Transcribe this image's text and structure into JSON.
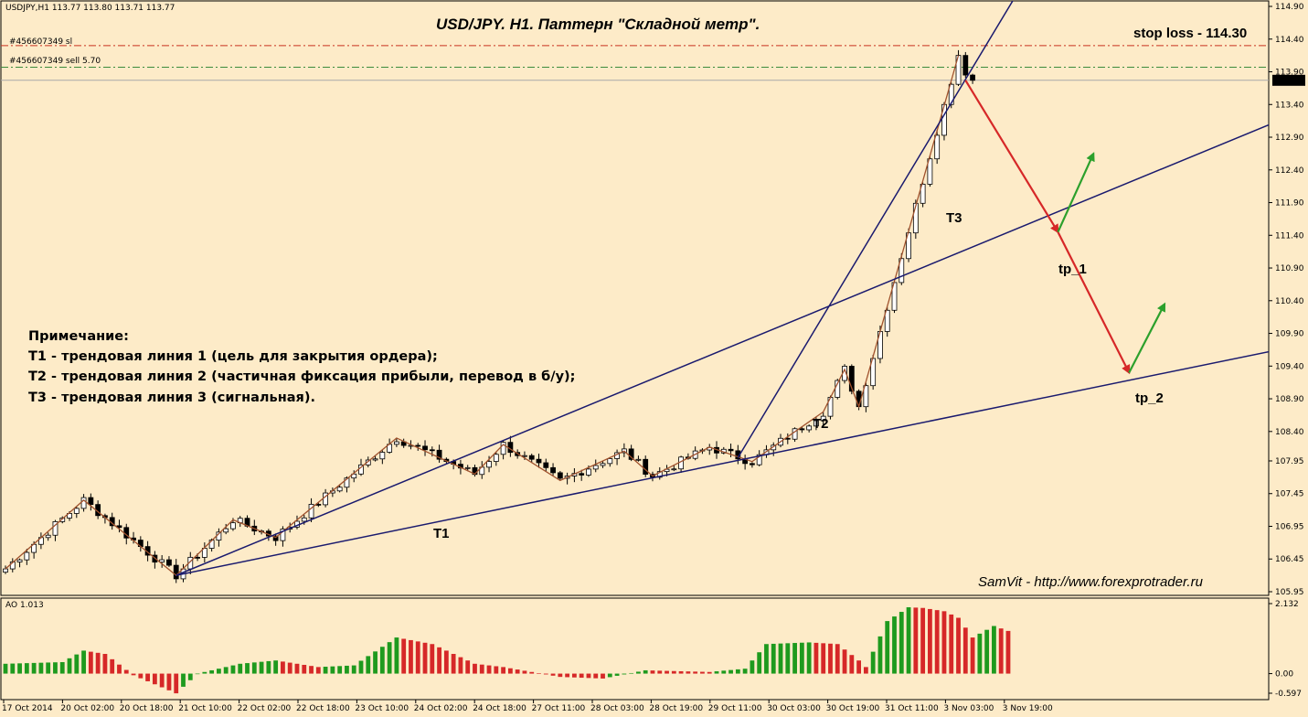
{
  "header": {
    "symbol_info": "USDJPY,H1  113.77 113.80 113.71 113.77",
    "indicator_label": "AO 1.013"
  },
  "orders": {
    "sl_label": "#456607349 sl",
    "sell_label": "#456607349 sell 5.70"
  },
  "annotations": {
    "title": "USD/JPY. H1. Паттерн \"Складной метр\".",
    "stop_loss": "stop loss - 114.30",
    "t1": "T1",
    "t2": "T2",
    "t3": "T3",
    "tp1": "tp_1",
    "tp2": "tp_2",
    "watermark": "SamVit - http://www.forexprotrader.ru",
    "note_lines": [
      "Примечание:",
      "Т1 - трендовая линия 1 (цель для закрытия ордера);",
      "Т2 - трендовая линия 2 (частичная фиксация прибыли, перевод в б/у);",
      "Т3 - трендовая линия 3 (сигнальная)."
    ]
  },
  "chart_data": [
    {
      "type": "candlestick",
      "symbol": "USDJPY",
      "timeframe": "H1",
      "ylim": [
        105.7,
        115.05
      ],
      "price_ticks": [
        "114.90",
        "114.40",
        "113.90",
        "113.40",
        "112.90",
        "112.40",
        "111.90",
        "111.40",
        "110.90",
        "110.40",
        "109.90",
        "109.40",
        "108.90",
        "108.40",
        "107.95",
        "107.45",
        "106.95",
        "106.45",
        "105.95"
      ],
      "time_labels": [
        "17 Oct 2014",
        "20 Oct 02:00",
        "20 Oct 18:00",
        "21 Oct 10:00",
        "22 Oct 02:00",
        "22 Oct 18:00",
        "23 Oct 10:00",
        "24 Oct 02:00",
        "24 Oct 18:00",
        "27 Oct 11:00",
        "28 Oct 03:00",
        "28 Oct 19:00",
        "29 Oct 11:00",
        "30 Oct 03:00",
        "30 Oct 19:00",
        "31 Oct 11:00",
        "3 Nov 03:00",
        "3 Nov 19:00"
      ],
      "current_price": "113.77",
      "levels": [
        {
          "name": "sl",
          "value": 114.3,
          "color": "#c8321e"
        },
        {
          "name": "sell",
          "value": 113.97,
          "color": "#3c8c3c"
        }
      ],
      "zigzag": [
        [
          0,
          106.3
        ],
        [
          11,
          107.35
        ],
        [
          24,
          106.2
        ],
        [
          32,
          107.05
        ],
        [
          38,
          106.78
        ],
        [
          55,
          108.3
        ],
        [
          66,
          107.75
        ],
        [
          70,
          108.2
        ],
        [
          78,
          107.65
        ],
        [
          87,
          108.1
        ],
        [
          91,
          107.72
        ],
        [
          99,
          108.16
        ],
        [
          105,
          107.94
        ],
        [
          115,
          108.7
        ],
        [
          118,
          109.35
        ],
        [
          120,
          108.78
        ],
        [
          134,
          114.15
        ]
      ],
      "trendlines": [
        {
          "name": "T1",
          "x1": 24,
          "y1": 106.2,
          "x2": 179,
          "y2": 109.65
        },
        {
          "name": "T2",
          "x1": 24,
          "y1": 106.2,
          "x2": 179,
          "y2": 113.15
        },
        {
          "name": "T3",
          "x1": 103,
          "y1": 108.0,
          "x2": 142,
          "y2": 115.05
        }
      ],
      "forecast": [
        {
          "from": [
            135,
            113.77
          ],
          "to": [
            148,
            111.45
          ],
          "color": "#d62828"
        },
        {
          "from": [
            148,
            111.45
          ],
          "to": [
            158,
            109.3
          ],
          "color": "#d62828"
        },
        {
          "from": [
            148,
            111.45
          ],
          "to": [
            153,
            112.65
          ],
          "color": "#2ca02c"
        },
        {
          "from": [
            158,
            109.3
          ],
          "to": [
            163,
            110.35
          ],
          "color": "#2ca02c"
        }
      ]
    },
    {
      "type": "bar",
      "name": "AO",
      "value": 1.013,
      "ylim": [
        -0.597,
        2.132
      ],
      "ticks": [
        "2.132",
        "0.00",
        "-0.597"
      ],
      "up_color": "#1e9a1e",
      "down_color": "#d62828"
    }
  ]
}
